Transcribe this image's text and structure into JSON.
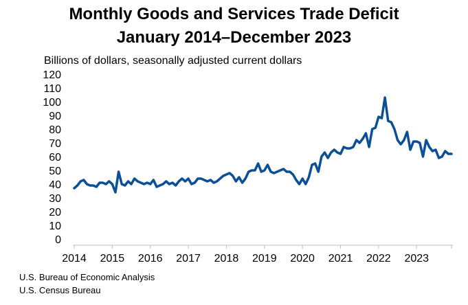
{
  "chart_data": {
    "type": "line",
    "title": "Monthly Goods and Services Trade Deficit",
    "subtitle": "January 2014–December 2023",
    "ylabel": "Billions of dollars, seasonally adjusted current dollars",
    "xlabel": "",
    "ylim": [
      0,
      120
    ],
    "yticks": [
      "0",
      "10",
      "20",
      "30",
      "40",
      "50",
      "60",
      "70",
      "80",
      "90",
      "100",
      "110",
      "120"
    ],
    "xticks": [
      "2014",
      "2015",
      "2016",
      "2017",
      "2018",
      "2019",
      "2020",
      "2021",
      "2022",
      "2023"
    ],
    "grid": false,
    "legend": "none",
    "color": "#0b4f95",
    "series": [
      {
        "values": [
          37,
          39,
          42,
          43,
          40,
          39,
          39,
          38,
          41,
          41,
          40,
          42,
          40,
          34,
          49,
          40,
          39,
          42,
          40,
          44,
          42,
          41,
          40,
          41,
          40,
          43,
          38,
          39,
          40,
          42,
          40,
          41,
          39,
          42,
          44,
          42,
          44,
          40,
          41,
          44,
          44,
          43,
          42,
          43,
          41,
          42,
          44,
          46,
          47,
          48,
          46,
          42,
          45,
          41,
          44,
          49,
          50,
          50,
          55,
          49,
          50,
          54,
          49,
          48,
          49,
          50,
          51,
          49,
          49,
          47,
          43,
          40,
          44,
          40,
          45,
          54,
          55,
          49,
          60,
          63,
          59,
          63,
          65,
          63,
          62,
          67,
          66,
          66,
          67,
          72,
          70,
          73,
          77,
          67,
          80,
          81,
          89,
          88,
          103,
          86,
          85,
          80,
          72,
          69,
          72,
          78,
          65,
          71,
          71,
          70,
          60,
          72,
          67,
          64,
          65,
          59,
          60,
          64,
          62,
          62
        ]
      }
    ]
  },
  "sources": [
    "U.S. Bureau of Economic Analysis",
    "U.S. Census Bureau"
  ]
}
